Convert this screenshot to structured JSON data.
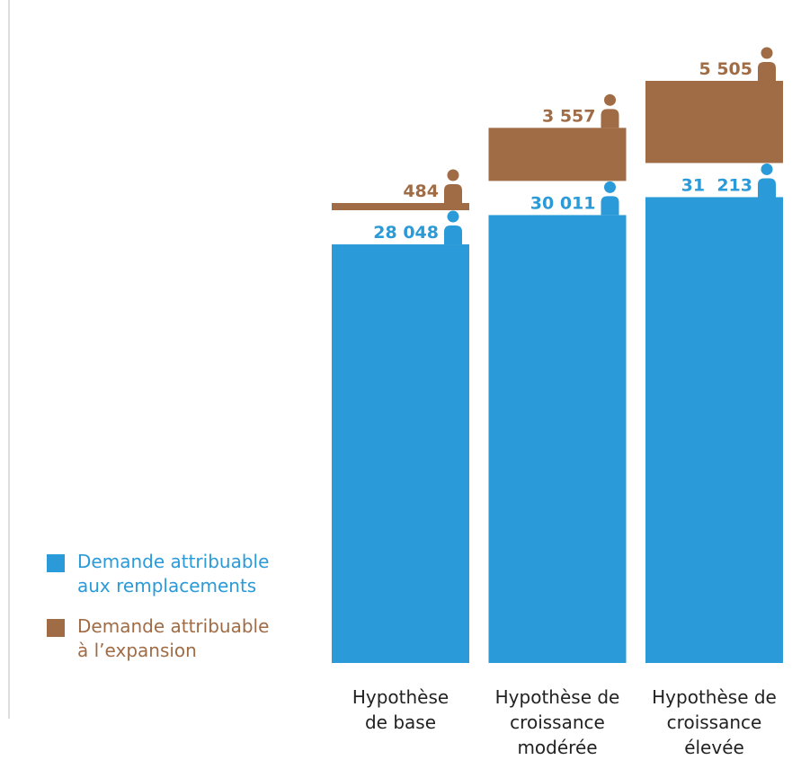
{
  "chart_data": {
    "type": "bar",
    "stacked": true,
    "categories": [
      "Hypothèse\nde base",
      "Hypothèse de\ncroissance\nmodérée",
      "Hypothèse de\ncroissance\nélevée"
    ],
    "series": [
      {
        "name": "Demande attribuable\naux remplacements",
        "color": "#2a9ad8",
        "values": [
          28048,
          30011,
          31213
        ],
        "value_labels": [
          "28 048",
          "30 011",
          "31  213"
        ]
      },
      {
        "name": "Demande attribuable\nà l’expansion",
        "color": "#a06c45",
        "values": [
          484,
          3557,
          5505
        ],
        "value_labels": [
          "484",
          "3 557",
          "5 505"
        ]
      }
    ]
  }
}
